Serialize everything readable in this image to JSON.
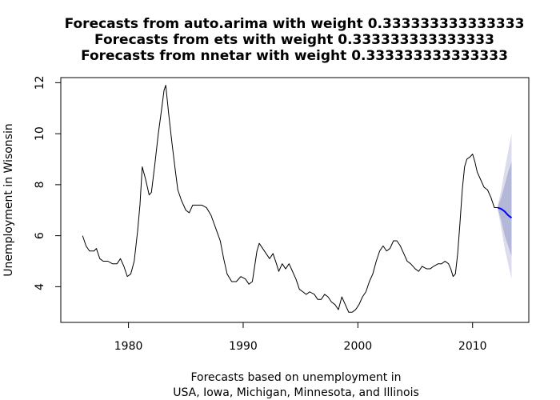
{
  "chart_data": {
    "type": "line",
    "title_lines": [
      "Forecasts from auto.arima with weight 0.333333333333333",
      "Forecasts from ets with weight 0.333333333333333",
      "Forecasts from nnetar with weight 0.333333333333333"
    ],
    "xlabel_lines": [
      "Forecasts based on unemployment in",
      "USA, Iowa, Michigan, Minnesota, and Illinois"
    ],
    "ylabel": "Unemployment in Wisonsin",
    "xlim": [
      1974.1,
      2014.9
    ],
    "ylim": [
      2.6,
      12.2
    ],
    "x_ticks": [
      1980,
      1990,
      2000,
      2010
    ],
    "y_ticks": [
      4,
      6,
      8,
      10,
      12
    ],
    "grid": false,
    "colors": {
      "history": "#000000",
      "forecast": "#0000ff",
      "band_outer": "#dcdcec",
      "band_inner": "#b3b8d8"
    },
    "series": [
      {
        "values": [
          [
            1976.0,
            6.0
          ],
          [
            1976.3,
            5.6
          ],
          [
            1976.6,
            5.4
          ],
          [
            1977.0,
            5.4
          ],
          [
            1977.2,
            5.5
          ],
          [
            1977.5,
            5.1
          ],
          [
            1977.8,
            5.0
          ],
          [
            1978.2,
            5.0
          ],
          [
            1978.6,
            4.9
          ],
          [
            1979.0,
            4.9
          ],
          [
            1979.3,
            5.1
          ],
          [
            1979.6,
            4.8
          ],
          [
            1979.9,
            4.4
          ],
          [
            1980.2,
            4.5
          ],
          [
            1980.5,
            5.0
          ],
          [
            1980.8,
            6.2
          ],
          [
            1981.0,
            7.2
          ],
          [
            1981.2,
            8.7
          ],
          [
            1981.5,
            8.2
          ],
          [
            1981.8,
            7.6
          ],
          [
            1982.0,
            7.7
          ],
          [
            1982.3,
            8.8
          ],
          [
            1982.6,
            10.0
          ],
          [
            1982.9,
            11.0
          ],
          [
            1983.1,
            11.7
          ],
          [
            1983.25,
            11.9
          ],
          [
            1983.5,
            10.8
          ],
          [
            1983.8,
            9.6
          ],
          [
            1984.1,
            8.5
          ],
          [
            1984.3,
            7.8
          ],
          [
            1984.6,
            7.4
          ],
          [
            1985.0,
            7.0
          ],
          [
            1985.3,
            6.9
          ],
          [
            1985.6,
            7.2
          ],
          [
            1986.0,
            7.2
          ],
          [
            1986.4,
            7.2
          ],
          [
            1986.8,
            7.1
          ],
          [
            1987.2,
            6.8
          ],
          [
            1987.6,
            6.3
          ],
          [
            1988.0,
            5.8
          ],
          [
            1988.3,
            5.1
          ],
          [
            1988.6,
            4.5
          ],
          [
            1989.0,
            4.2
          ],
          [
            1989.4,
            4.2
          ],
          [
            1989.8,
            4.4
          ],
          [
            1990.2,
            4.3
          ],
          [
            1990.5,
            4.1
          ],
          [
            1990.8,
            4.2
          ],
          [
            1991.0,
            4.8
          ],
          [
            1991.2,
            5.4
          ],
          [
            1991.4,
            5.7
          ],
          [
            1991.7,
            5.5
          ],
          [
            1992.0,
            5.3
          ],
          [
            1992.3,
            5.1
          ],
          [
            1992.6,
            5.3
          ],
          [
            1992.9,
            4.9
          ],
          [
            1993.1,
            4.6
          ],
          [
            1993.4,
            4.9
          ],
          [
            1993.7,
            4.7
          ],
          [
            1994.0,
            4.9
          ],
          [
            1994.3,
            4.6
          ],
          [
            1994.6,
            4.3
          ],
          [
            1994.9,
            3.9
          ],
          [
            1995.2,
            3.8
          ],
          [
            1995.5,
            3.7
          ],
          [
            1995.8,
            3.8
          ],
          [
            1996.2,
            3.7
          ],
          [
            1996.5,
            3.5
          ],
          [
            1996.8,
            3.5
          ],
          [
            1997.1,
            3.7
          ],
          [
            1997.4,
            3.6
          ],
          [
            1997.7,
            3.4
          ],
          [
            1998.0,
            3.3
          ],
          [
            1998.3,
            3.1
          ],
          [
            1998.6,
            3.6
          ],
          [
            1998.9,
            3.3
          ],
          [
            1999.2,
            3.0
          ],
          [
            1999.5,
            3.0
          ],
          [
            1999.8,
            3.1
          ],
          [
            2000.1,
            3.3
          ],
          [
            2000.4,
            3.6
          ],
          [
            2000.7,
            3.8
          ],
          [
            2001.0,
            4.2
          ],
          [
            2001.3,
            4.5
          ],
          [
            2001.6,
            5.0
          ],
          [
            2001.9,
            5.4
          ],
          [
            2002.2,
            5.6
          ],
          [
            2002.5,
            5.4
          ],
          [
            2002.8,
            5.5
          ],
          [
            2003.1,
            5.8
          ],
          [
            2003.4,
            5.8
          ],
          [
            2003.7,
            5.6
          ],
          [
            2004.0,
            5.3
          ],
          [
            2004.3,
            5.0
          ],
          [
            2004.6,
            4.9
          ],
          [
            2005.0,
            4.7
          ],
          [
            2005.3,
            4.6
          ],
          [
            2005.6,
            4.8
          ],
          [
            2006.0,
            4.7
          ],
          [
            2006.3,
            4.7
          ],
          [
            2006.6,
            4.8
          ],
          [
            2007.0,
            4.9
          ],
          [
            2007.3,
            4.9
          ],
          [
            2007.6,
            5.0
          ],
          [
            2007.9,
            4.9
          ],
          [
            2008.1,
            4.7
          ],
          [
            2008.3,
            4.4
          ],
          [
            2008.5,
            4.5
          ],
          [
            2008.7,
            5.3
          ],
          [
            2008.9,
            6.5
          ],
          [
            2009.1,
            7.8
          ],
          [
            2009.3,
            8.7
          ],
          [
            2009.5,
            9.0
          ],
          [
            2009.8,
            9.1
          ],
          [
            2010.0,
            9.2
          ],
          [
            2010.2,
            8.9
          ],
          [
            2010.4,
            8.5
          ],
          [
            2010.7,
            8.2
          ],
          [
            2011.0,
            7.9
          ],
          [
            2011.3,
            7.8
          ],
          [
            2011.6,
            7.5
          ],
          [
            2011.9,
            7.1
          ],
          [
            2012.2,
            7.1
          ]
        ]
      },
      {
        "values": [
          [
            2012.2,
            7.1
          ],
          [
            2012.5,
            7.05
          ],
          [
            2012.8,
            6.95
          ],
          [
            2013.1,
            6.8
          ],
          [
            2013.4,
            6.7
          ]
        ]
      }
    ],
    "bands": {
      "x": [
        2012.2,
        2012.5,
        2012.8,
        2013.1,
        2013.4
      ],
      "outer_low": [
        7.0,
        6.3,
        5.5,
        4.9,
        4.3
      ],
      "outer_high": [
        7.2,
        7.8,
        8.6,
        9.3,
        10.0
      ],
      "inner_low": [
        7.05,
        6.6,
        6.0,
        5.6,
        5.2
      ],
      "inner_high": [
        7.15,
        7.5,
        8.0,
        8.5,
        8.9
      ]
    }
  }
}
